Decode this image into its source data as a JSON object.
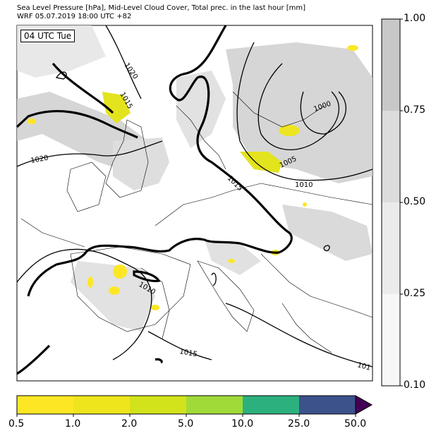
{
  "header": {
    "title_line1": "Sea Level Pressure [hPa], Mid-Level Cloud Cover, Total prec. in the last hour [mm]",
    "title_line2": "WRF 05.07.2019 18:00 UTC +82"
  },
  "map": {
    "time_label": "04 UTC Tue",
    "isobar_labels": [
      "1020",
      "1015",
      "1000",
      "1005",
      "1010",
      "1020",
      "1015",
      "1010",
      "1015",
      "101"
    ]
  },
  "cloud_colorbar": {
    "ticks": [
      "1.00",
      "0.75",
      "0.50",
      "0.25",
      "0.10"
    ],
    "colors": [
      "#c8c8c8",
      "#dcdcdc",
      "#ebebeb",
      "#f7f7f7"
    ]
  },
  "precip_colorbar": {
    "ticks": [
      "0.5",
      "1.0",
      "2.0",
      "5.0",
      "10.0",
      "25.0",
      "50.0"
    ],
    "colors": [
      "#fde725",
      "#efe51c",
      "#d2e21b",
      "#a0da39",
      "#2cb17e",
      "#3b528b",
      "#440154"
    ]
  }
}
